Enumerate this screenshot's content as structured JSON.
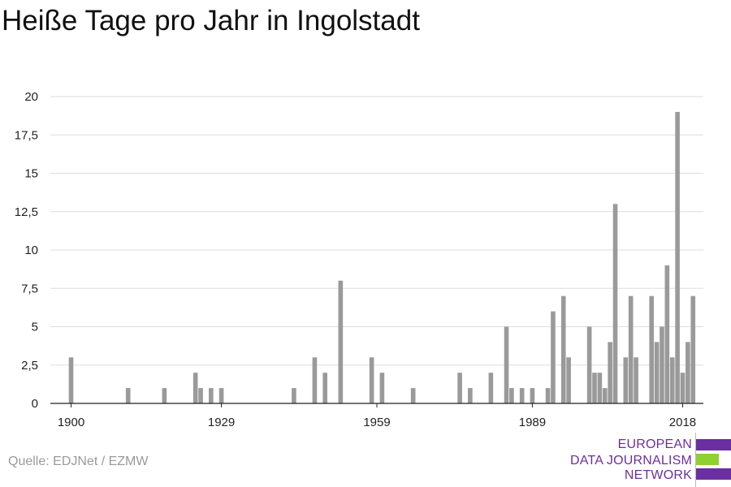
{
  "title": "Heiße Tage pro Jahr in Ingolstadt",
  "source": "Quelle: EDJNet / EZMW",
  "logo": {
    "lines": [
      "EUROPEAN",
      "DATA JOURNALISM",
      "NETWORK"
    ],
    "colors": {
      "purple": "#6b2fa0",
      "green": "#8fd12e"
    }
  },
  "chart_data": {
    "type": "bar",
    "title": "Heiße Tage pro Jahr in Ingolstadt",
    "xlabel": "",
    "ylabel": "",
    "xlim": [
      1896,
      2022
    ],
    "ylim": [
      0,
      20
    ],
    "grid": true,
    "bar_color": "#9a9a9a",
    "x_ticks": [
      1900,
      1929,
      1959,
      1989,
      2018
    ],
    "y_ticks": [
      0,
      2.5,
      5,
      7.5,
      10,
      12.5,
      15,
      17.5,
      20
    ],
    "y_tick_labels": [
      "0",
      "2,5",
      "5",
      "7,5",
      "10",
      "12,5",
      "15",
      "17,5",
      "20"
    ],
    "points": [
      {
        "x": 1900,
        "y": 3
      },
      {
        "x": 1911,
        "y": 1
      },
      {
        "x": 1918,
        "y": 1
      },
      {
        "x": 1924,
        "y": 2
      },
      {
        "x": 1925,
        "y": 1
      },
      {
        "x": 1927,
        "y": 1
      },
      {
        "x": 1929,
        "y": 1
      },
      {
        "x": 1943,
        "y": 1
      },
      {
        "x": 1947,
        "y": 3
      },
      {
        "x": 1949,
        "y": 2
      },
      {
        "x": 1952,
        "y": 8
      },
      {
        "x": 1958,
        "y": 3
      },
      {
        "x": 1960,
        "y": 2
      },
      {
        "x": 1966,
        "y": 1
      },
      {
        "x": 1975,
        "y": 2
      },
      {
        "x": 1977,
        "y": 1
      },
      {
        "x": 1981,
        "y": 2
      },
      {
        "x": 1984,
        "y": 5
      },
      {
        "x": 1985,
        "y": 1
      },
      {
        "x": 1987,
        "y": 1
      },
      {
        "x": 1989,
        "y": 1
      },
      {
        "x": 1992,
        "y": 1
      },
      {
        "x": 1993,
        "y": 6
      },
      {
        "x": 1995,
        "y": 7
      },
      {
        "x": 1996,
        "y": 3
      },
      {
        "x": 2000,
        "y": 5
      },
      {
        "x": 2001,
        "y": 2
      },
      {
        "x": 2002,
        "y": 2
      },
      {
        "x": 2003,
        "y": 1
      },
      {
        "x": 2004,
        "y": 4
      },
      {
        "x": 2005,
        "y": 13
      },
      {
        "x": 2007,
        "y": 3
      },
      {
        "x": 2008,
        "y": 7
      },
      {
        "x": 2009,
        "y": 3
      },
      {
        "x": 2012,
        "y": 7
      },
      {
        "x": 2013,
        "y": 4
      },
      {
        "x": 2014,
        "y": 5
      },
      {
        "x": 2015,
        "y": 9
      },
      {
        "x": 2016,
        "y": 3
      },
      {
        "x": 2017,
        "y": 19
      },
      {
        "x": 2018,
        "y": 2
      },
      {
        "x": 2019,
        "y": 4
      },
      {
        "x": 2020,
        "y": 7
      }
    ]
  }
}
